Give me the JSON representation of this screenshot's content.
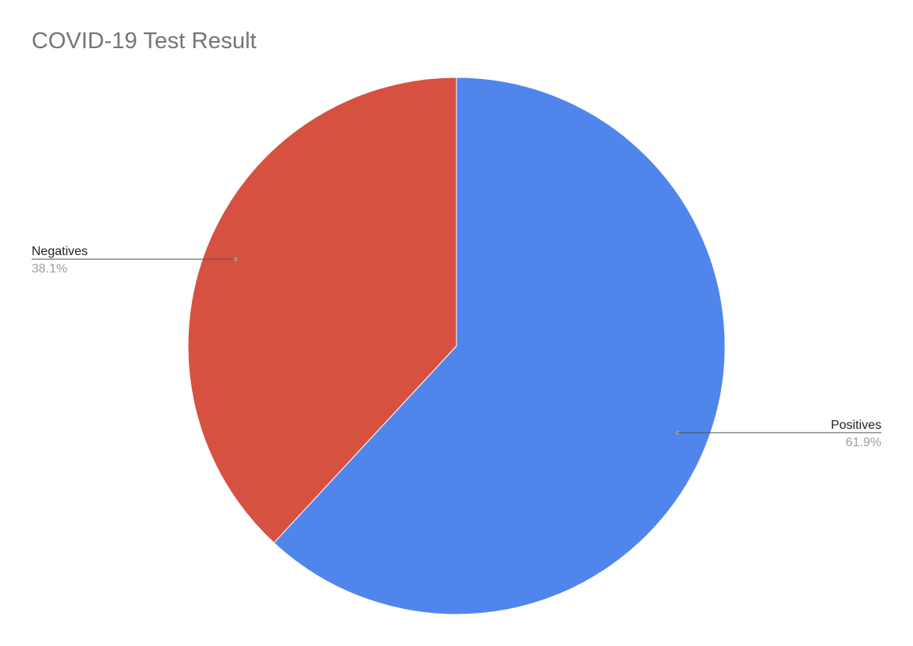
{
  "chart_data": {
    "type": "pie",
    "title": "COVID-19 Test Result",
    "slices": [
      {
        "label": "Positives",
        "value": 61.9,
        "value_label": "61.9%",
        "color": "#5086EC"
      },
      {
        "label": "Negatives",
        "value": 38.1,
        "value_label": "38.1%",
        "color": "#D75140"
      }
    ],
    "start_angle_deg": 0,
    "direction": "clockwise",
    "legend": "none (labels outside slices)",
    "leader_line_color": "#555555"
  }
}
